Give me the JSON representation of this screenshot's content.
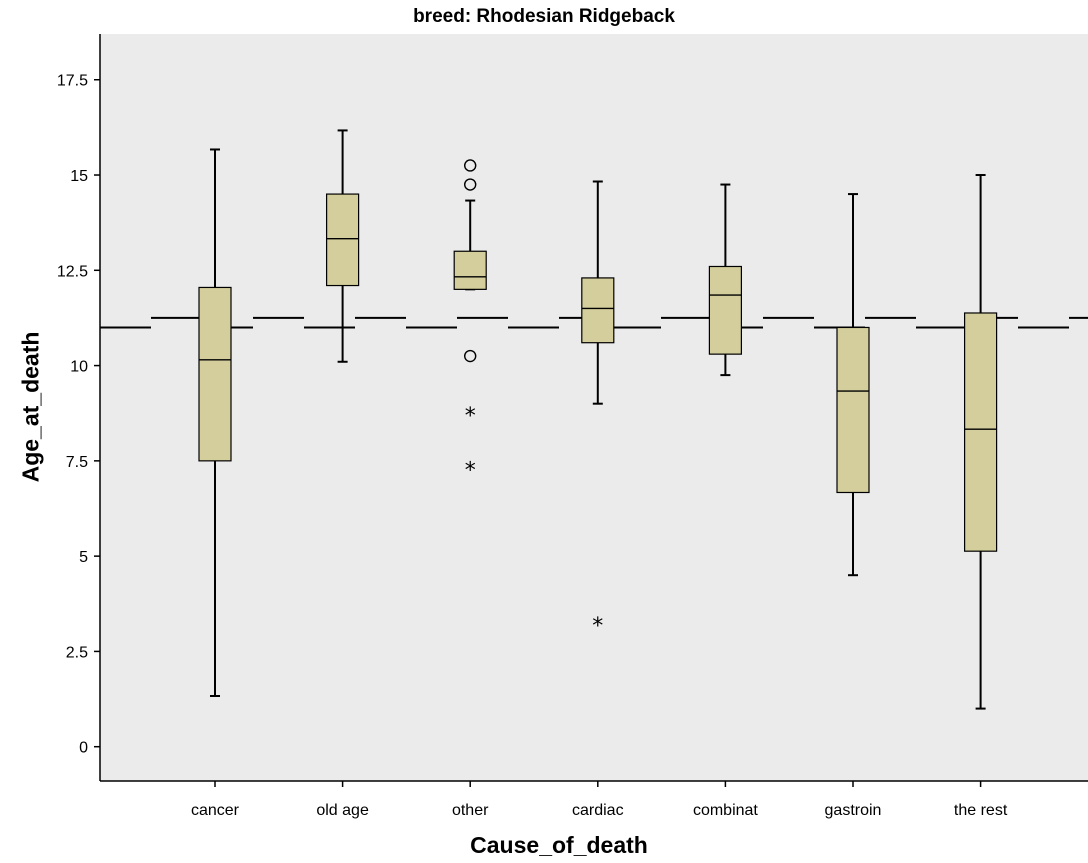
{
  "chart_data": {
    "type": "boxplot",
    "title": "breed: Rhodesian Ridgeback",
    "xlabel": "Cause_of_death",
    "ylabel": "Age_at_death",
    "ylim": [
      -0.9,
      18.7
    ],
    "yticks": [
      0,
      2.5,
      5,
      7.5,
      10,
      12.5,
      15,
      17.5
    ],
    "ytick_labels": [
      "0",
      "2.5",
      "5",
      "7.5",
      "10",
      "12.5",
      "15",
      "17.5"
    ],
    "categories": [
      "cancer",
      "old age",
      "other",
      "cardiac",
      "combinat",
      "gastroin",
      "the rest"
    ],
    "boxes": [
      {
        "category": "cancer",
        "whisker_low": 1.33,
        "q1": 7.5,
        "median": 10.15,
        "q3": 12.05,
        "whisker_high": 15.67,
        "outliers": [],
        "extremes": []
      },
      {
        "category": "old age",
        "whisker_low": 10.1,
        "q1": 12.1,
        "median": 13.33,
        "q3": 14.5,
        "whisker_high": 16.17,
        "outliers": [],
        "extremes": []
      },
      {
        "category": "other",
        "whisker_low": 12.0,
        "q1": 12.0,
        "median": 12.33,
        "q3": 13.0,
        "whisker_high": 14.33,
        "outliers": [
          15.25,
          14.75,
          10.25
        ],
        "extremes": [
          8.75,
          7.33
        ]
      },
      {
        "category": "cardiac",
        "whisker_low": 9.0,
        "q1": 10.6,
        "median": 11.5,
        "q3": 12.3,
        "whisker_high": 14.83,
        "outliers": [],
        "extremes": [
          3.25
        ]
      },
      {
        "category": "combinat",
        "whisker_low": 9.75,
        "q1": 10.3,
        "median": 11.85,
        "q3": 12.6,
        "whisker_high": 14.75,
        "outliers": [],
        "extremes": []
      },
      {
        "category": "gastroin",
        "whisker_low": 4.5,
        "q1": 6.67,
        "median": 9.33,
        "q3": 11.0,
        "whisker_high": 14.5,
        "outliers": [],
        "extremes": []
      },
      {
        "category": "the rest",
        "whisker_low": 1.0,
        "q1": 5.13,
        "median": 8.33,
        "q3": 11.38,
        "whisker_high": 15.0,
        "outliers": [],
        "extremes": []
      }
    ],
    "reference_lines": [
      {
        "value": 11.0,
        "style": "long-dash"
      },
      {
        "value": 11.25,
        "style": "long-dash"
      }
    ],
    "grid": false,
    "box_color": "#d3ce9b",
    "plot_background": "#ebebeb"
  }
}
